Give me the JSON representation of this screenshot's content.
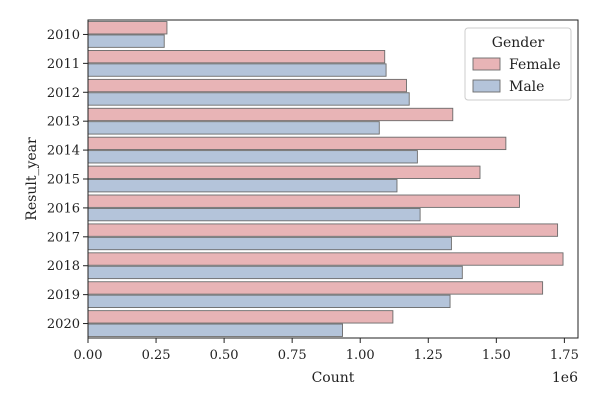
{
  "chart_data": {
    "type": "bar",
    "orientation": "horizontal",
    "categories": [
      "2010",
      "2011",
      "2012",
      "2013",
      "2014",
      "2015",
      "2016",
      "2017",
      "2018",
      "2019",
      "2020"
    ],
    "series": [
      {
        "name": "Female",
        "color": "#e8b4b6",
        "values": [
          0.29,
          1.09,
          1.17,
          1.34,
          1.535,
          1.44,
          1.585,
          1.725,
          1.745,
          1.67,
          1.12
        ]
      },
      {
        "name": "Male",
        "color": "#b4c4da",
        "values": [
          0.28,
          1.095,
          1.18,
          1.07,
          1.21,
          1.135,
          1.22,
          1.335,
          1.375,
          1.33,
          0.935
        ]
      }
    ],
    "xlabel": "Count",
    "ylabel": "Result_year",
    "xlim": [
      0,
      1.8
    ],
    "x_ticks": [
      "0.00",
      "0.25",
      "0.50",
      "0.75",
      "1.00",
      "1.25",
      "1.50",
      "1.75"
    ],
    "x_tick_values": [
      0,
      0.25,
      0.5,
      0.75,
      1.0,
      1.25,
      1.5,
      1.75
    ],
    "x_offset_label": "1e6",
    "legend": {
      "title": "Gender",
      "position": "upper-right"
    },
    "edge_color": "#6b6b6b"
  }
}
